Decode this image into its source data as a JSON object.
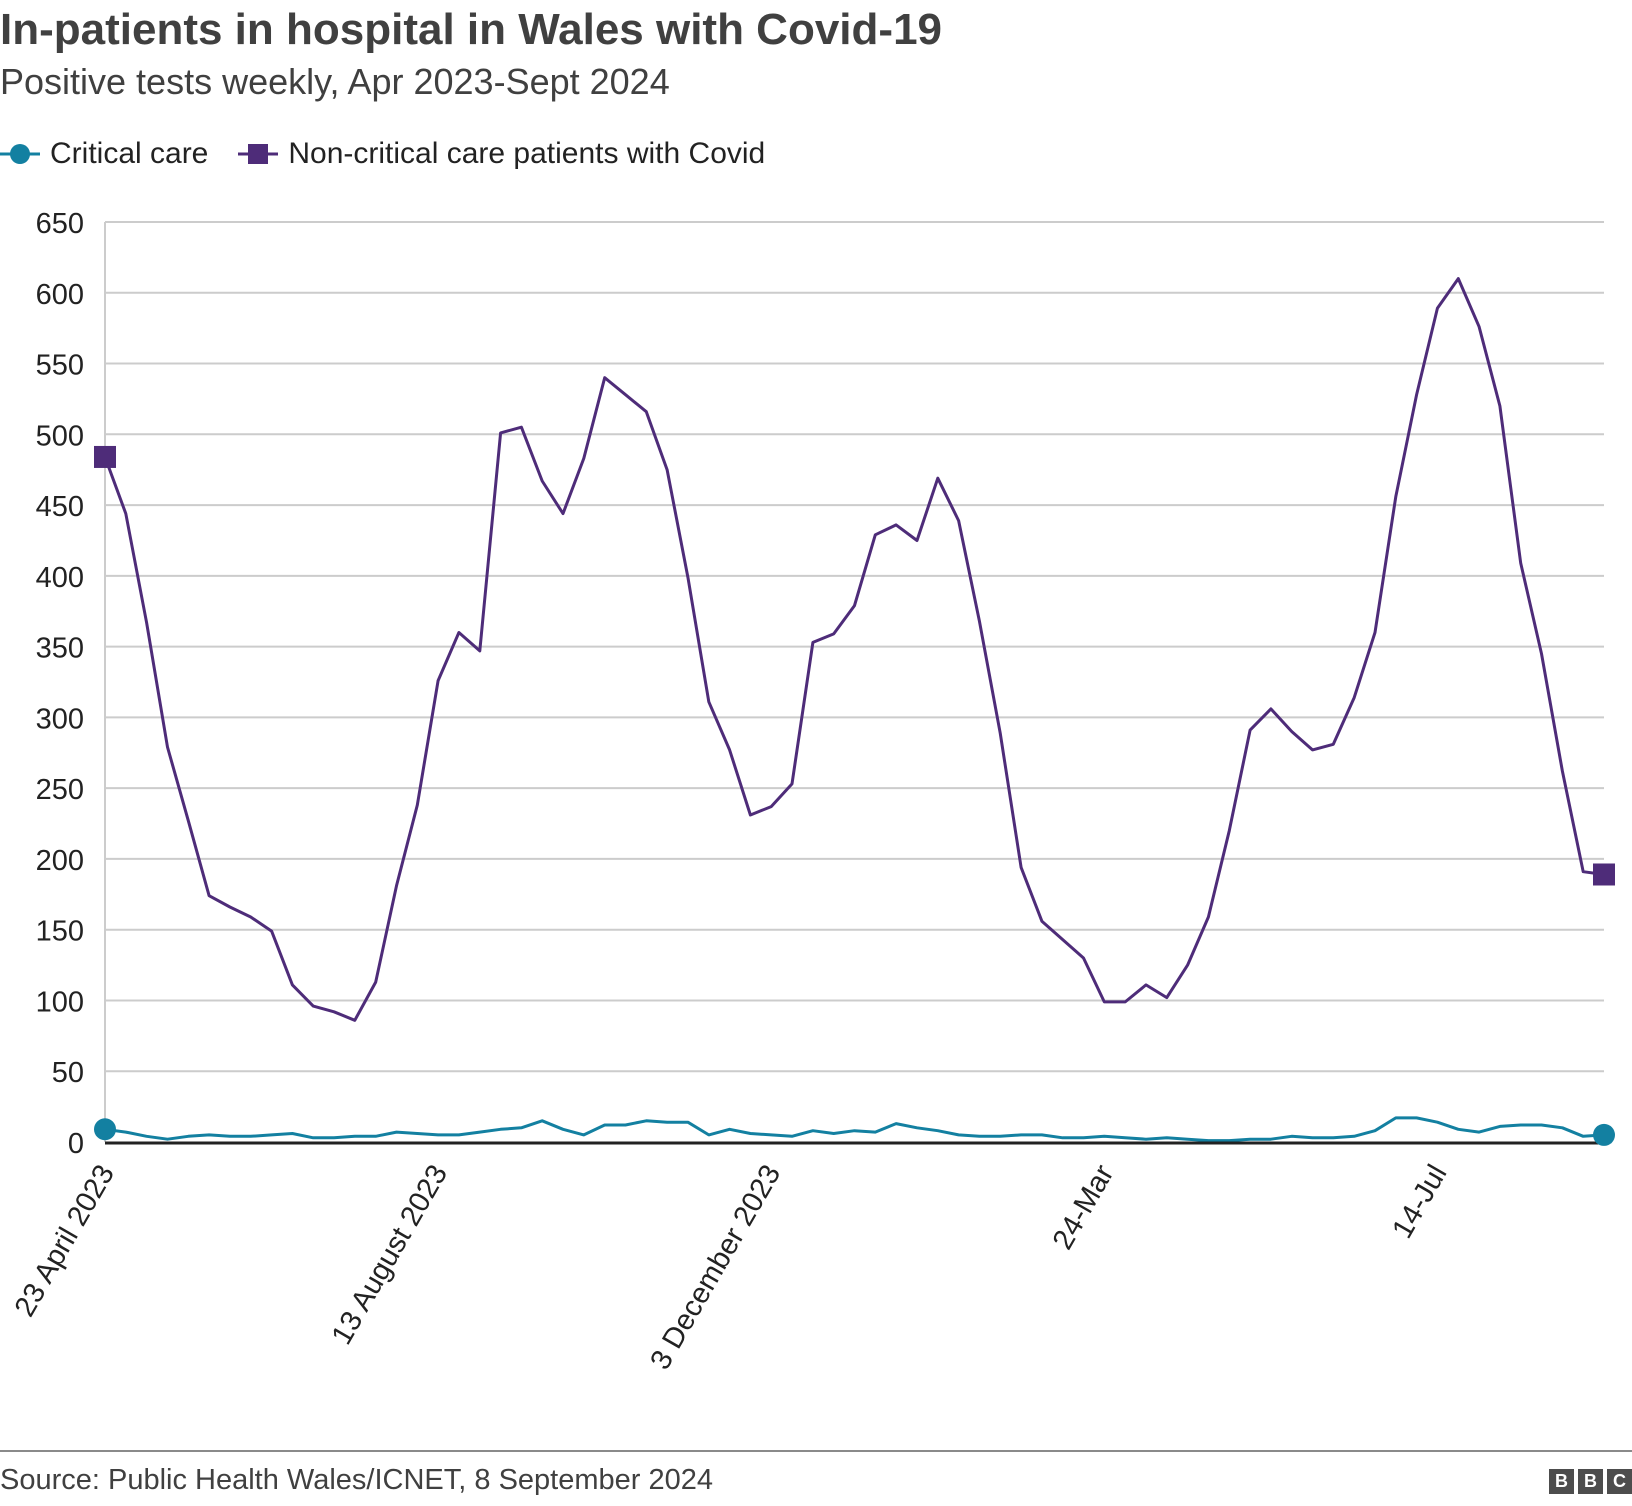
{
  "chart_data": {
    "type": "line",
    "title": "In-patients in hospital in Wales with Covid-19",
    "subtitle": "Positive tests weekly, Apr 2023-Sept 2024",
    "source": "Source: Public Health Wales/ICNET, 8 September 2024",
    "xlabel": "",
    "ylabel": "",
    "ylim": [
      0,
      650
    ],
    "yticks": [
      0,
      50,
      100,
      150,
      200,
      250,
      300,
      350,
      400,
      450,
      500,
      550,
      600,
      650
    ],
    "grid": true,
    "legend_position": "top-left",
    "x_tick_labels": [
      {
        "index": 0,
        "label": "23 April 2023"
      },
      {
        "index": 16,
        "label": "13 August 2023"
      },
      {
        "index": 32,
        "label": "3 December 2023"
      },
      {
        "index": 48,
        "label": "24-Mar"
      },
      {
        "index": 64,
        "label": "14-Jul"
      }
    ],
    "series": [
      {
        "name": "Critical care",
        "color": "#1380a1",
        "marker": "circle",
        "values": [
          9,
          7,
          4,
          2,
          4,
          5,
          4,
          4,
          5,
          6,
          3,
          3,
          4,
          4,
          7,
          6,
          5,
          5,
          7,
          9,
          10,
          15,
          9,
          5,
          12,
          12,
          15,
          14,
          14,
          5,
          9,
          6,
          5,
          4,
          8,
          6,
          8,
          7,
          13,
          10,
          8,
          5,
          4,
          4,
          5,
          5,
          3,
          3,
          4,
          3,
          2,
          3,
          2,
          1,
          1,
          2,
          2,
          4,
          3,
          3,
          4,
          8,
          17,
          17,
          14,
          9,
          7,
          11,
          12,
          12,
          10,
          4,
          5
        ]
      },
      {
        "name": "Non-critical care patients with Covid",
        "color": "#4e2c79",
        "marker": "square",
        "values": [
          484,
          444,
          367,
          279,
          227,
          174,
          166,
          159,
          149,
          111,
          96,
          92,
          86,
          113,
          181,
          238,
          326,
          360,
          347,
          501,
          505,
          467,
          444,
          483,
          540,
          528,
          516,
          475,
          399,
          311,
          277,
          231,
          237,
          253,
          353,
          359,
          379,
          429,
          436,
          425,
          469,
          439,
          368,
          289,
          194,
          156,
          143,
          130,
          99,
          99,
          111,
          102,
          125,
          159,
          220,
          291,
          306,
          290,
          277,
          281,
          314,
          360,
          456,
          528,
          589,
          610,
          576,
          520,
          409,
          345,
          262,
          191,
          189
        ]
      }
    ]
  }
}
